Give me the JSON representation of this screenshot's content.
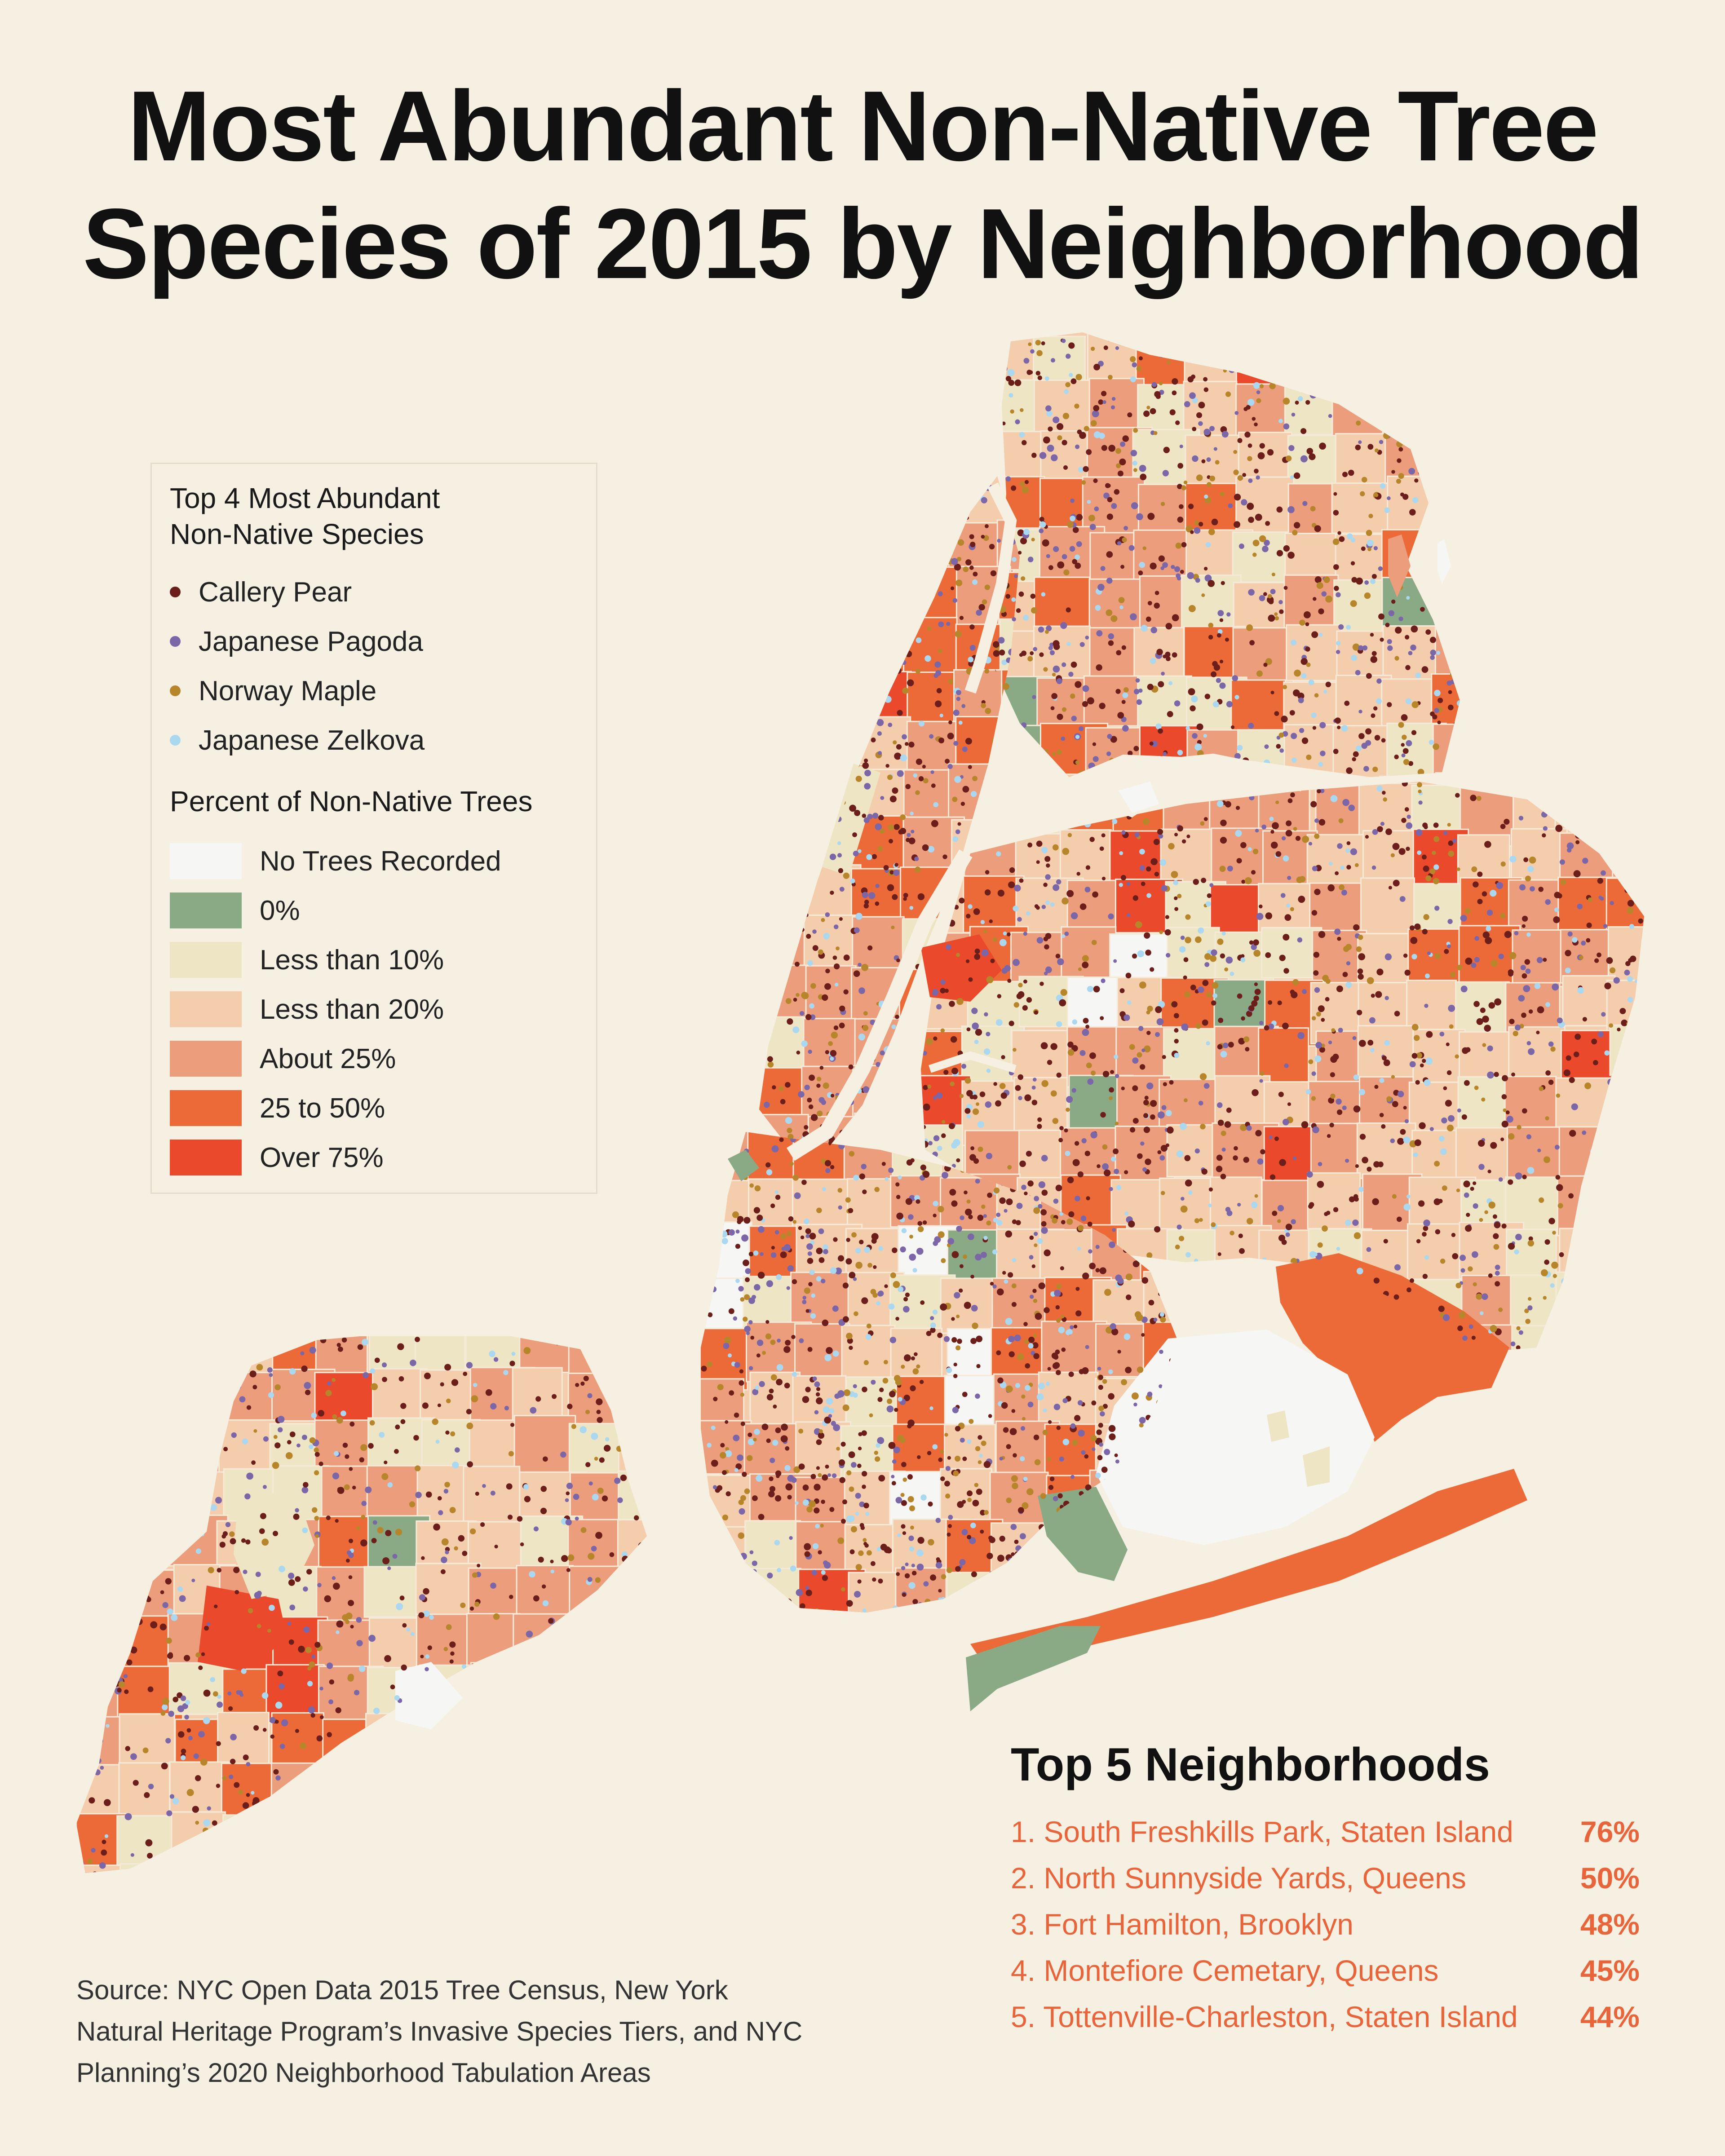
{
  "title_line1": "Most Abundant Non-Native Tree",
  "title_line2": "Species of 2015 by Neighborhood",
  "legend": {
    "species_heading_1": "Top 4 Most Abundant",
    "species_heading_2": "Non-Native Species",
    "species": [
      {
        "label": "Callery Pear",
        "color": "#6b1e1a"
      },
      {
        "label": "Japanese Pagoda",
        "color": "#7b67a8"
      },
      {
        "label": "Norway Maple",
        "color": "#b8862a"
      },
      {
        "label": "Japanese Zelkova",
        "color": "#a9d8f0"
      }
    ],
    "percent_heading": "Percent of Non-Native Trees",
    "classes": [
      {
        "label": "No Trees Recorded",
        "color": "#f6f6f4"
      },
      {
        "label": "0%",
        "color": "#8aa985"
      },
      {
        "label": "Less than 10%",
        "color": "#ede5c3"
      },
      {
        "label": "Less than 20%",
        "color": "#f4cdad"
      },
      {
        "label": "About 25%",
        "color": "#ec9d7c"
      },
      {
        "label": "25 to 50%",
        "color": "#ec6a38"
      },
      {
        "label": "Over 75%",
        "color": "#ea4a2b"
      }
    ]
  },
  "top5": {
    "title": "Top 5 Neighborhoods",
    "items": [
      {
        "name": "1. South Freshkills Park, Staten Island",
        "pct": "76%"
      },
      {
        "name": "2.  North Sunnyside Yards, Queens",
        "pct": "50%"
      },
      {
        "name": "3. Fort Hamilton, Brooklyn",
        "pct": "48%"
      },
      {
        "name": "4. Montefiore Cemetary, Queens",
        "pct": "45%"
      },
      {
        "name": "5. Tottenville-Charleston, Staten Island",
        "pct": "44%"
      }
    ]
  },
  "source_lines": [
    "Source: NYC Open Data 2015 Tree Census, New York",
    "Natural Heritage Program’s Invasive Species Tiers, and NYC",
    "Planning’s 2020 Neighborhood Tabulation Areas"
  ]
}
